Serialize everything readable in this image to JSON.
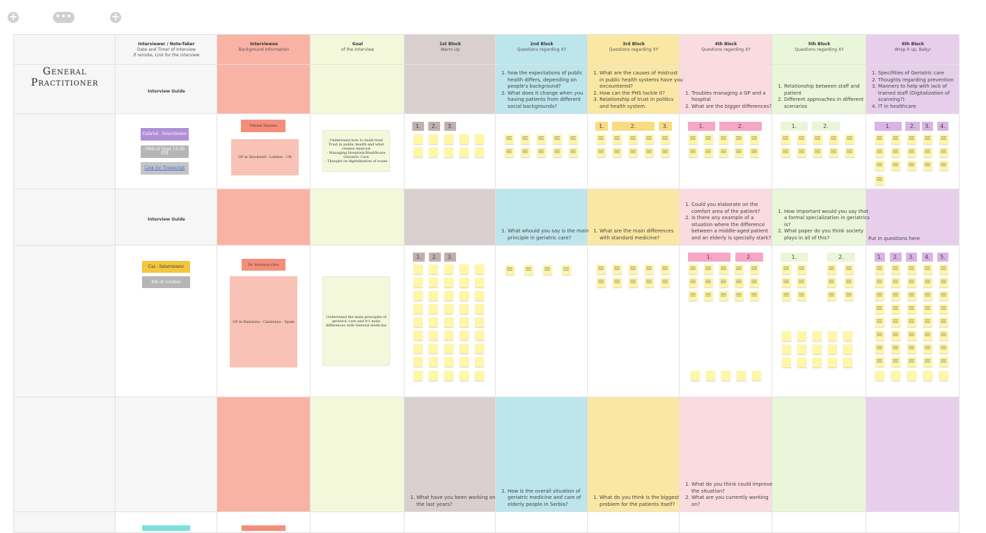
{
  "colors": {
    "gray": "#f6f6f6",
    "interviewee": "#f9b3a4",
    "goal": "#f4f8da",
    "b1": "#dacfcf",
    "b2": "#bde5ec",
    "b3": "#fae7a4",
    "b4": "#f9dbe0",
    "b5": "#e9f6d9",
    "b6": "#e7cfec",
    "sticky": "#fff6a6"
  },
  "toolbar": {
    "icons": [
      "plus-icon",
      "more-icon",
      "plus-icon"
    ]
  },
  "section_title": "General Practitioner",
  "headers": [
    {
      "title": "Interviewer / Note-Taker",
      "sub": "Date and Timer of Interview\nIf remote, Link for the interview"
    },
    {
      "title": "Interviewee",
      "sub": "Background Information"
    },
    {
      "title": "Goal",
      "sub": "of the Interview"
    },
    {
      "title": "1st Block",
      "sub": "Warm Up"
    },
    {
      "title": "2nd Block",
      "sub": "Questions regarding XY"
    },
    {
      "title": "3rd Block",
      "sub": "Questions regarding XY"
    },
    {
      "title": "4th Block",
      "sub": "Questions regarding XY"
    },
    {
      "title": "5th Block",
      "sub": "Questions regarding XY"
    },
    {
      "title": "6th Block",
      "sub": "Wrap it up, Baby!"
    }
  ],
  "guide_label": "Interview Guide",
  "guide1": {
    "b2": [
      "how the expectations of public health differs, depending on people's background?",
      "What does it change when you having patients from different social backgrounds?"
    ],
    "b3": [
      "What are the causes of mistrust in public health systems have you encountered?",
      "How can the PHS tackle it?",
      "Relationship of trust in politics and health system."
    ],
    "b4": [
      "Troubles managing a GP and a hospital",
      "What are the bigger differences?"
    ],
    "b5": [
      "Relationship between staff and patient",
      "Different approaches in different scenarios"
    ],
    "b6": [
      "Specifities of Geriatric care",
      "Thoughts regarding prevention",
      "Manners to help with lack of trained staff (Digitalization of scanning?)",
      "IT in healthcare"
    ]
  },
  "interview1": {
    "interviewer": "Gabriel - Interviewer",
    "date": "30th of Sept 12:30 PM",
    "link": "Link for Transcript",
    "interviewee_name": "Vikram Sharma",
    "interviewee_info": "GP in Stockwell - London - UK",
    "goal": "Understand how to build trust Trust in public health and what creates mistrust\n- Managing Hospitals/Healthcare\nGeriatric Care\n- Thought on digitalization of scans",
    "b1_labels": [
      "1.",
      "2.",
      "3."
    ],
    "b3_labels": [
      "1.",
      "2.",
      "3."
    ],
    "b4_labels": [
      "1.",
      "2."
    ],
    "b5_labels": [
      "1.",
      "2."
    ],
    "b6_labels": [
      "1.",
      "2.",
      "3.",
      "4."
    ]
  },
  "guide2": {
    "b2": [
      "What whould you say is the main principle in geriatric care?"
    ],
    "b3": [
      "What are the main differences with standard medicine?"
    ],
    "b4": [
      "Could you elaborate on the comfort area of the patient?",
      "Is there any example of a situation where the difference between a middle-aged patient and an elderly is specially stark?"
    ],
    "b5": [
      "How important would you say that a formal specialization in geriatrics is?",
      "What paper do you think society plays in all of this?"
    ],
    "b6_text": "Put in questions here"
  },
  "interview2": {
    "interviewer": "Cai - Interviewer",
    "date": "4th of october",
    "interviewee_name": "Dr. Veronica Orto",
    "interviewee_info": "GP in Badalona - Catalunya - Spain",
    "goal": "Understand the main principles of geriatric care and it's main differences with General medicine",
    "b1_labels": [
      "1.",
      "2.",
      "3."
    ],
    "b4_labels": [
      "1.",
      "2."
    ],
    "b5_labels": [
      "1.",
      "2."
    ],
    "b6_labels": [
      "1.",
      "2.",
      "3.",
      "4.",
      "5."
    ]
  },
  "guide3": {
    "b1": [
      "What have you been working on the last years?"
    ],
    "b2": [
      "How is the overall situation of geriatric medicine and care of elderly people in Serbia?"
    ],
    "b3": [
      "What do you think is the biggest problem for the patients itself?"
    ],
    "b4": [
      "What do you think could improve the situation?",
      "What are you currently working on?"
    ]
  }
}
